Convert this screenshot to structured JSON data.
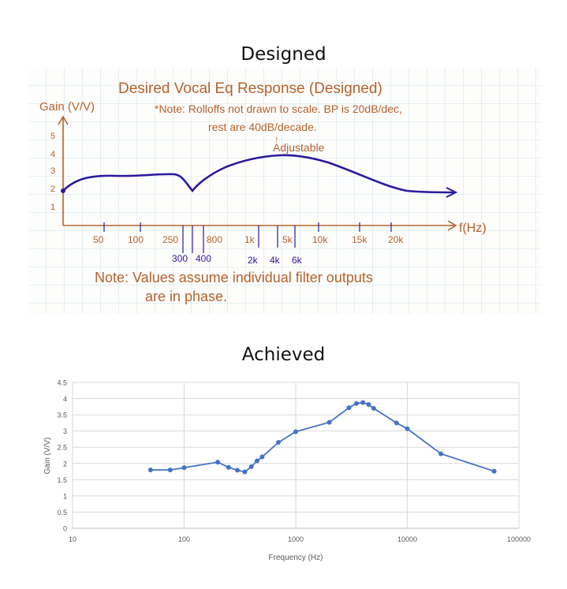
{
  "titles": {
    "designed": "Designed",
    "achieved": "Achieved"
  },
  "colors": {
    "ink_brown": "#b5622e",
    "ink_blue": "#2a1a9c",
    "grid_cyan": "#9ec9d6",
    "series_blue": "#4472c4",
    "grid_gray": "#d9d9d9",
    "axis_text": "#595959"
  },
  "designed": {
    "heading": "Desired Vocal Eq Response (Designed)",
    "note_line1": "*Note: Rolloffs not drawn to scale. BP is 20dB/dec,",
    "note_line2": "rest are 40dB/decade.",
    "adjustable": "Adjustable",
    "ylabel": "Gain (V/V)",
    "xlabel": "f(Hz)",
    "y_ticks": [
      "5",
      "4",
      "3",
      "2",
      "1"
    ],
    "x_ticks_top": [
      "50",
      "100",
      "250",
      "800",
      "1k",
      "5k",
      "10k",
      "15k",
      "20k"
    ],
    "x_ticks_bottom": [
      "300",
      "400",
      "2k",
      "4k",
      "6k"
    ],
    "footnote_line1": "Note: Values assume individual filter outputs",
    "footnote_line2": "are in phase."
  },
  "chart_data": {
    "type": "scatter",
    "title": "",
    "xlabel": "Frequency (Hz)",
    "ylabel": "Gain (V/V)",
    "x_scale": "log",
    "xlim": [
      10,
      100000
    ],
    "ylim": [
      0,
      4.5
    ],
    "y_ticks": [
      0,
      0.5,
      1,
      1.5,
      2,
      2.5,
      3,
      3.5,
      4,
      4.5
    ],
    "x_ticks": [
      10,
      100,
      1000,
      10000,
      100000
    ],
    "x_tick_labels": [
      "10",
      "100",
      "1000",
      "10000",
      "100000"
    ],
    "grid": true,
    "legend": "none",
    "series": [
      {
        "x": [
          50,
          75,
          100,
          200,
          250,
          300,
          350,
          400,
          450,
          500,
          700,
          1000,
          2000,
          3000,
          3500,
          4000,
          4500,
          5000,
          8000,
          10000,
          20000,
          60000
        ],
        "y": [
          1.8,
          1.8,
          1.87,
          2.04,
          1.88,
          1.79,
          1.74,
          1.9,
          2.08,
          2.2,
          2.65,
          2.98,
          3.27,
          3.72,
          3.85,
          3.88,
          3.82,
          3.7,
          3.25,
          3.07,
          2.3,
          1.76
        ]
      }
    ]
  }
}
